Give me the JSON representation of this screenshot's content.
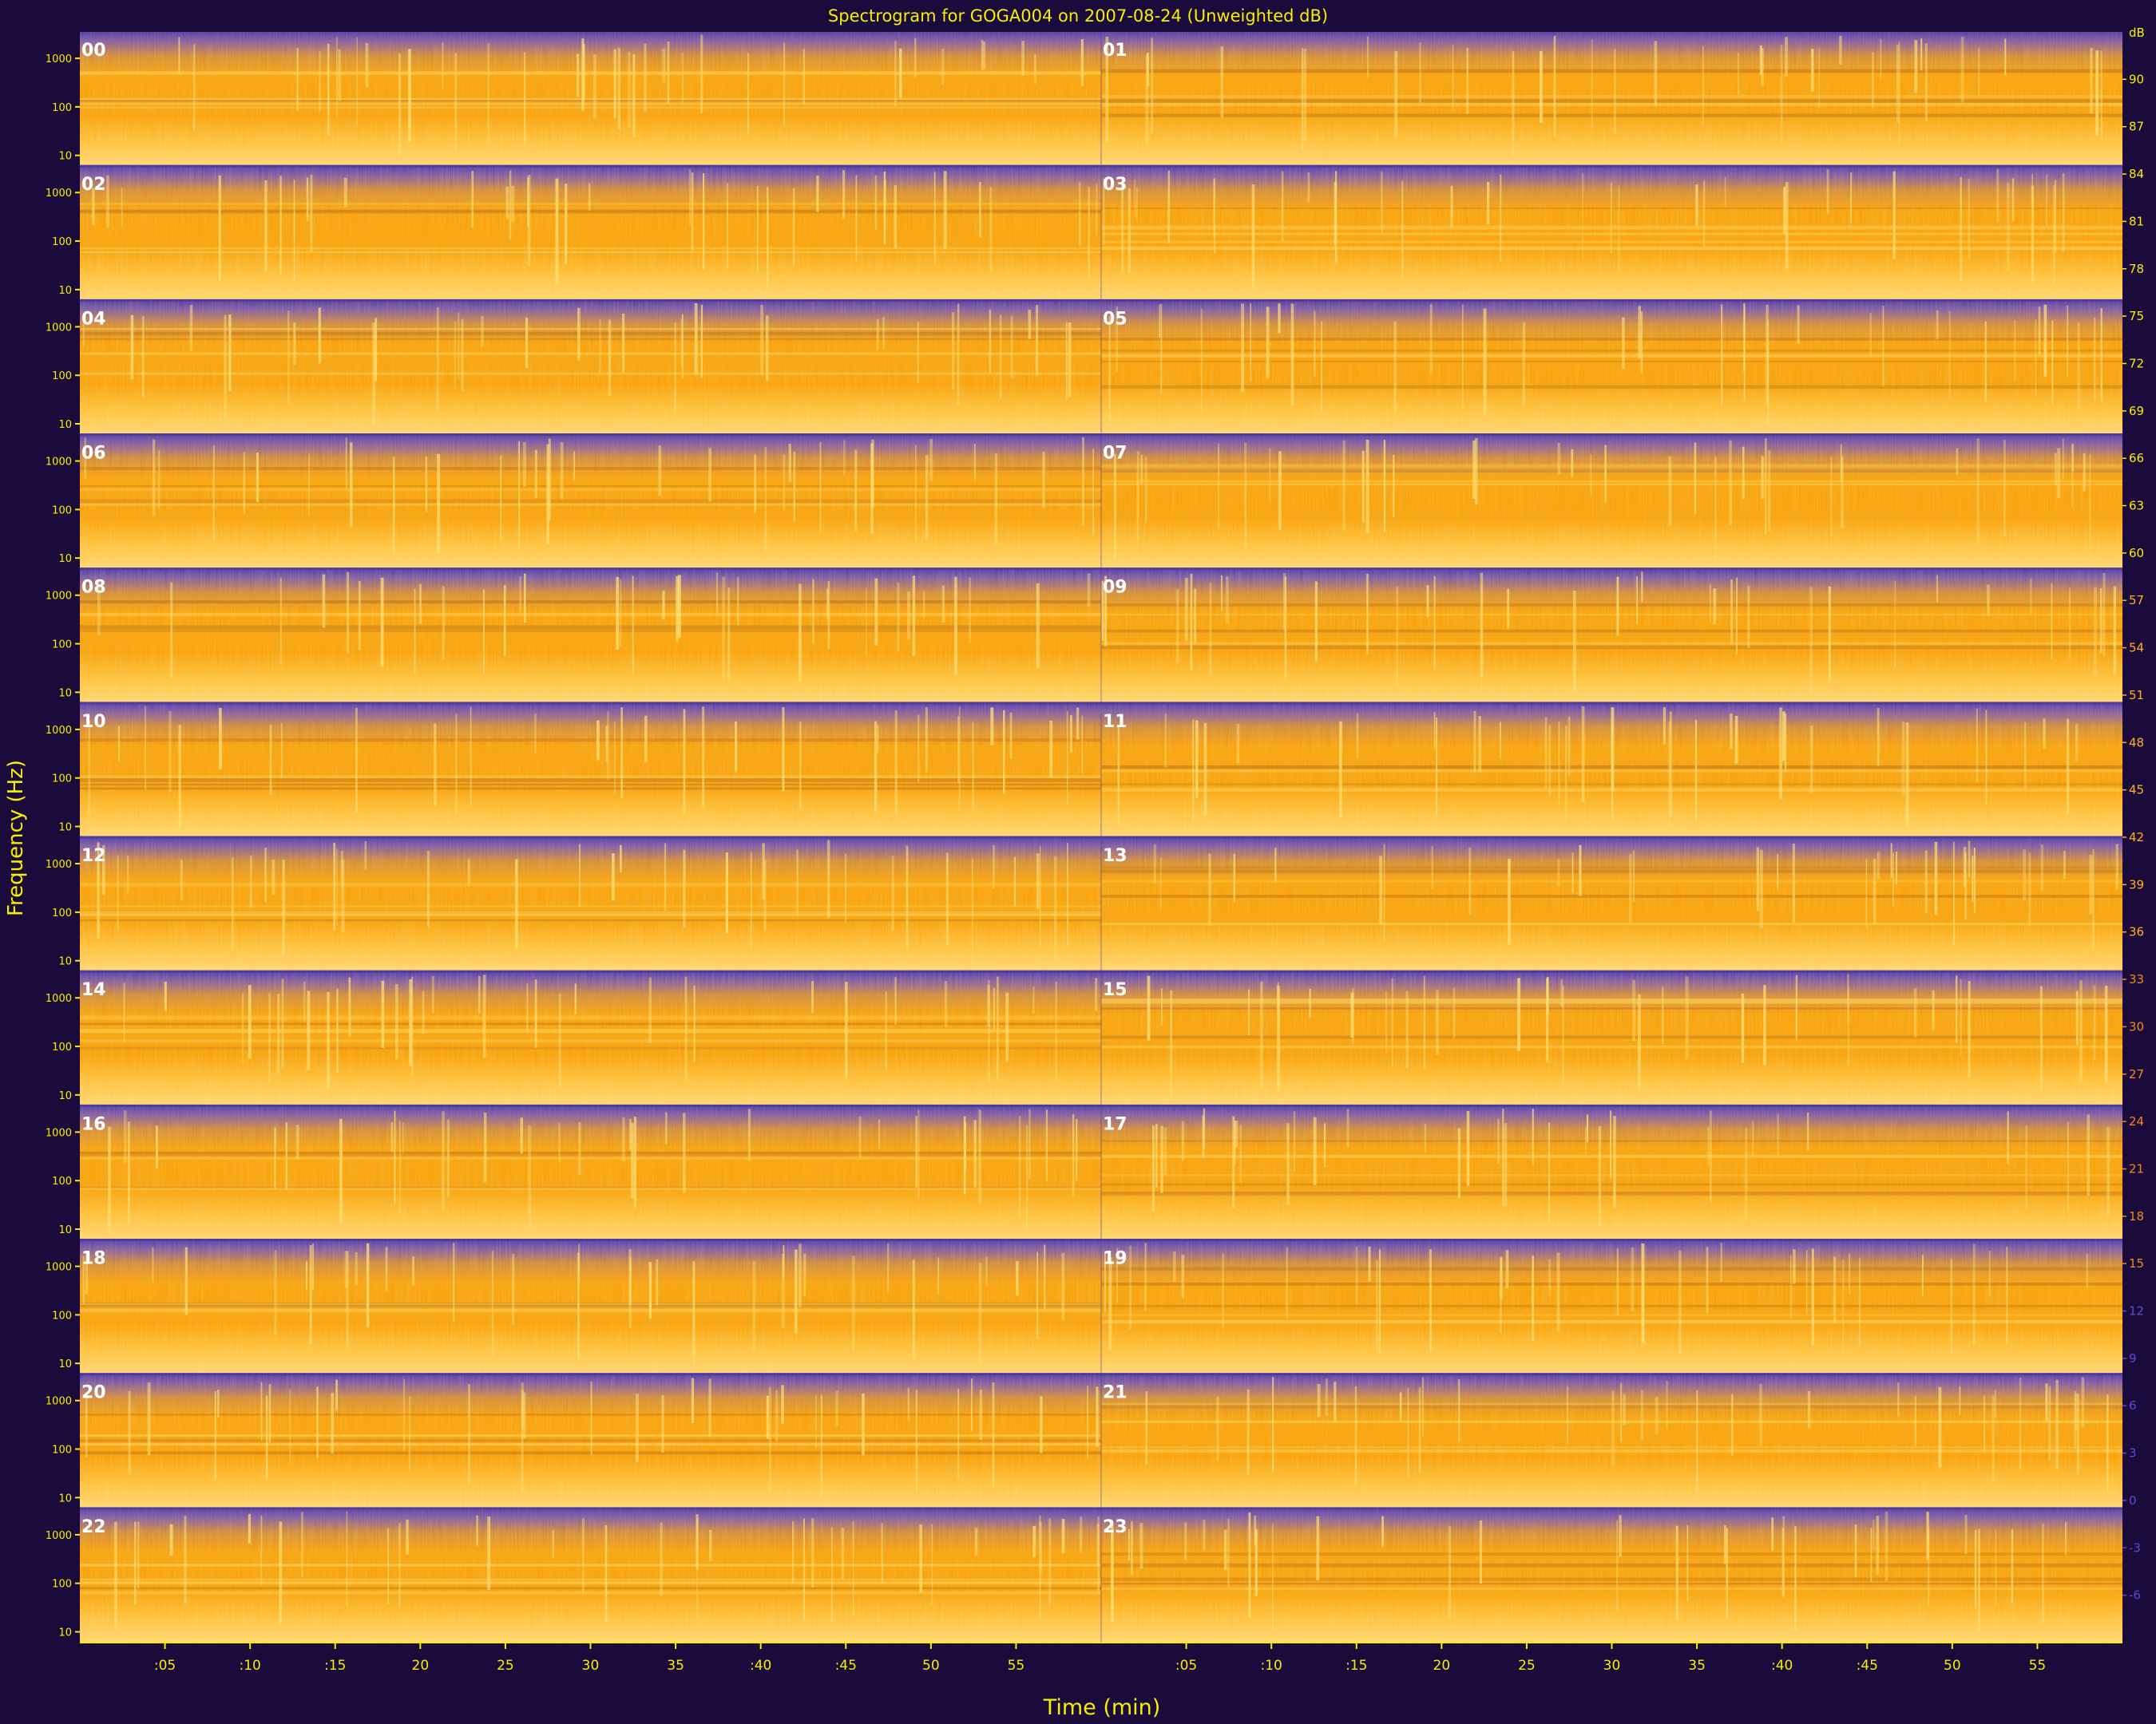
{
  "chart_data": {
    "type": "heatmap",
    "title": "Spectrogram for GOGA004 on 2007-08-24 (Unweighted dB)",
    "xlabel": "Time (min)",
    "ylabel": "Frequency (Hz)",
    "hours": [
      "00",
      "01",
      "02",
      "03",
      "04",
      "05",
      "06",
      "07",
      "08",
      "09",
      "10",
      "11",
      "12",
      "13",
      "14",
      "15",
      "16",
      "17",
      "18",
      "19",
      "20",
      "21",
      "22",
      "23"
    ],
    "x_tick_labels": [
      ":05",
      ":10",
      ":15",
      "20",
      "25",
      "30",
      "35",
      ":40",
      ":45",
      "50",
      "55"
    ],
    "x_tick_values": [
      5,
      10,
      15,
      20,
      25,
      30,
      35,
      40,
      45,
      50,
      55
    ],
    "x_range_min": [
      0,
      60
    ],
    "y_tick_labels": [
      "1000",
      "100",
      "10"
    ],
    "y_tick_values": [
      1000,
      100,
      10
    ],
    "y_scale": "log",
    "colorbar_unit": "dB",
    "colorbar_range_db": [
      -9,
      93
    ],
    "colorbar_ticks": [
      "90",
      "87",
      "84",
      "81",
      "78",
      "75",
      "72",
      "69",
      "66",
      "63",
      "60",
      "57",
      "54",
      "51",
      "48",
      "45",
      "42",
      "39",
      "36",
      "33",
      "30",
      "27",
      "24",
      "21",
      "18",
      "15",
      "12",
      "9",
      "6",
      "3",
      "0",
      "-3",
      "-6"
    ],
    "colorbar_tick_values": [
      90,
      87,
      84,
      81,
      78,
      75,
      72,
      69,
      66,
      63,
      60,
      57,
      54,
      51,
      48,
      45,
      42,
      39,
      36,
      33,
      30,
      27,
      24,
      21,
      18,
      15,
      12,
      9,
      6,
      3,
      0,
      -3,
      -6
    ],
    "colors": {
      "background": "#1b0a3c",
      "text": "#f5f000",
      "high": "#ffbf2a",
      "mid": "#f7a20a",
      "low": "#4f3aa4",
      "panel_label": "#ffffff"
    }
  }
}
